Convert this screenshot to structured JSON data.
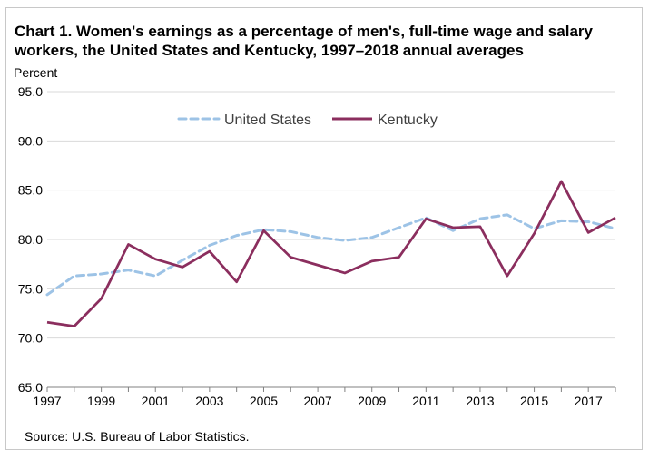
{
  "chart_data": {
    "type": "line",
    "title": "Chart 1. Women's earnings as a percentage of men's, full-time wage and salary workers, the United States and Kentucky, 1997–2018 annual averages",
    "ylabel": "Percent",
    "xlabel": "",
    "source": "Source:  U.S. Bureau of Labor Statistics.",
    "ylim": [
      65,
      95
    ],
    "yticks": [
      "65.0",
      "70.0",
      "75.0",
      "80.0",
      "85.0",
      "90.0",
      "95.0"
    ],
    "xticks": [
      "1997",
      "1999",
      "2001",
      "2003",
      "2005",
      "2007",
      "2009",
      "2011",
      "2013",
      "2015",
      "2017"
    ],
    "x": [
      1997,
      1998,
      1999,
      2000,
      2001,
      2002,
      2003,
      2004,
      2005,
      2006,
      2007,
      2008,
      2009,
      2010,
      2011,
      2012,
      2013,
      2014,
      2015,
      2016,
      2017,
      2018
    ],
    "grid": true,
    "legend": "top-center",
    "series": [
      {
        "name": "United States",
        "color": "#9dc3e6",
        "style": "dashed",
        "values": [
          74.4,
          76.3,
          76.5,
          76.9,
          76.3,
          77.9,
          79.4,
          80.4,
          81.0,
          80.8,
          80.2,
          79.9,
          80.2,
          81.2,
          82.2,
          80.9,
          82.1,
          82.5,
          81.1,
          81.9,
          81.8,
          81.1
        ]
      },
      {
        "name": "Kentucky",
        "color": "#8b2e5e",
        "style": "solid",
        "values": [
          71.6,
          71.2,
          74.0,
          79.5,
          78.0,
          77.2,
          78.8,
          75.7,
          80.9,
          78.2,
          77.4,
          76.6,
          77.8,
          78.2,
          82.1,
          81.2,
          81.3,
          76.3,
          80.6,
          85.9,
          80.7,
          82.2
        ]
      }
    ]
  }
}
